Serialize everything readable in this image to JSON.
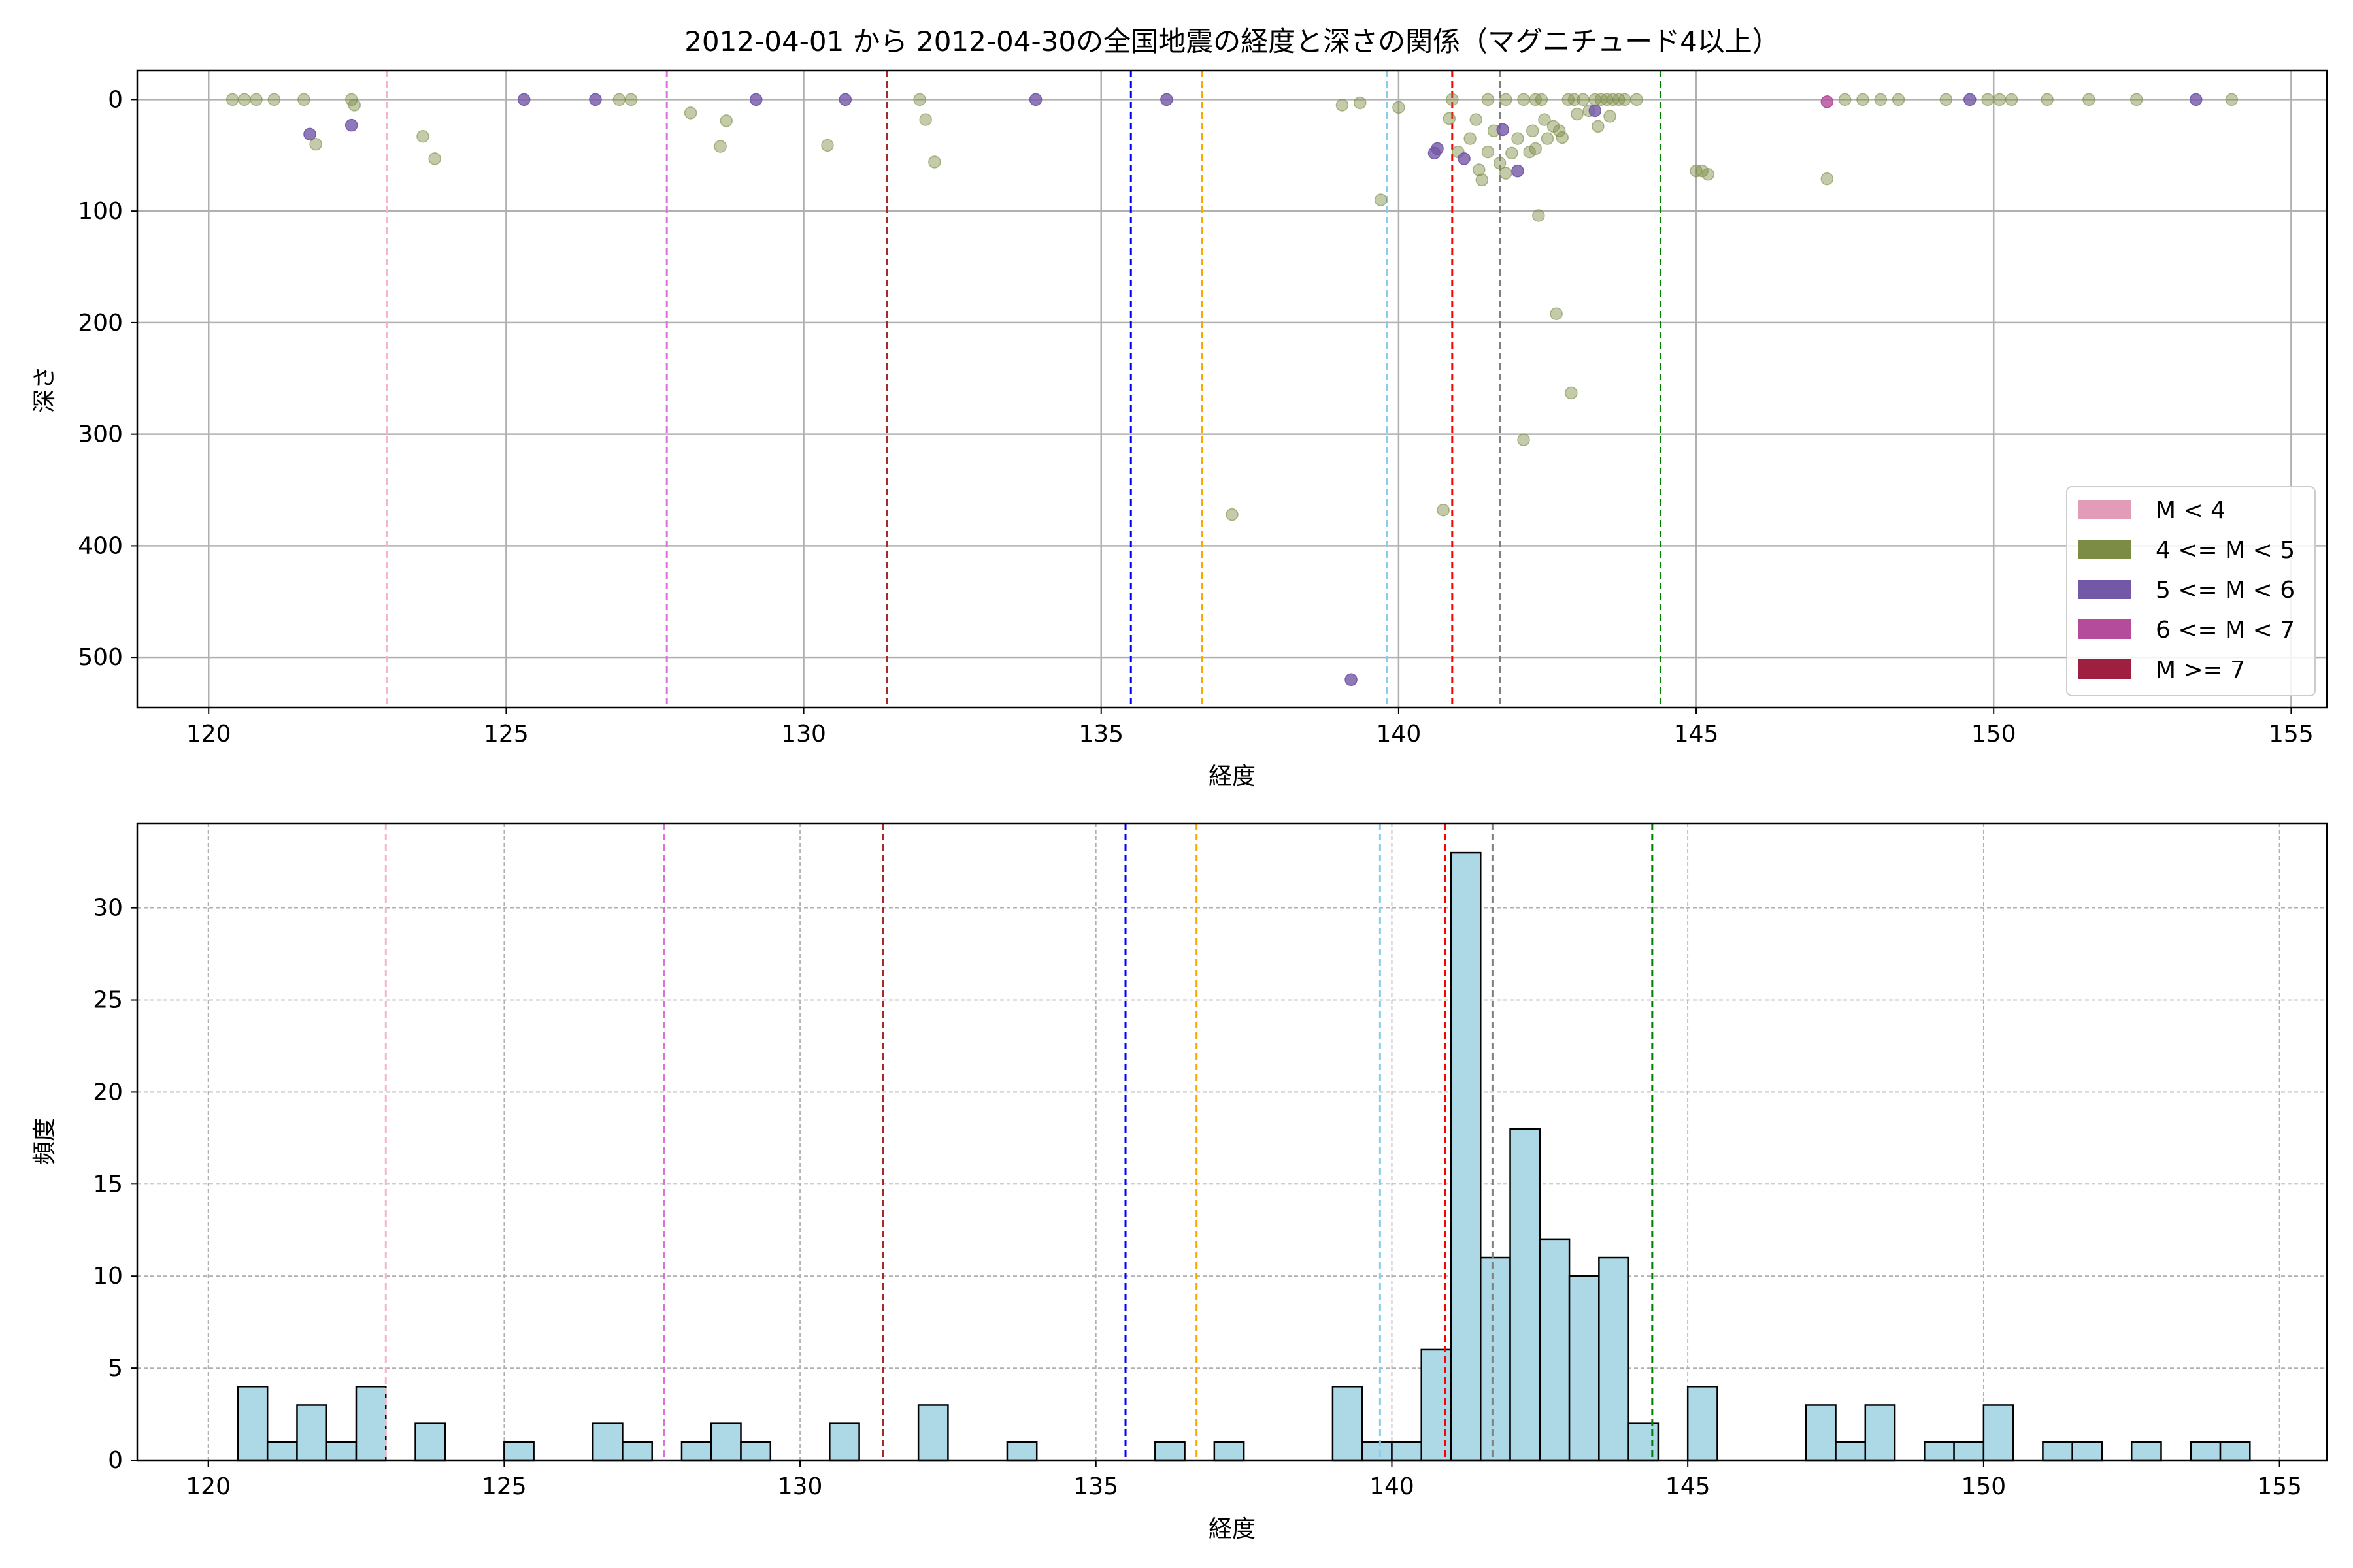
{
  "chart_data": [
    {
      "type": "scatter",
      "title": "2012-04-01 から 2012-04-30の全国地震の経度と深さの関係（マグニチュード4以上）",
      "xlabel": "経度",
      "ylabel": "深さ",
      "xlim": [
        118.8,
        155.6
      ],
      "ylim": [
        545,
        -26
      ],
      "y_inverted": true,
      "xticks": [
        120,
        125,
        130,
        135,
        140,
        145,
        150,
        155
      ],
      "yticks": [
        0,
        100,
        200,
        300,
        400,
        500
      ],
      "grid": true,
      "legend_position": "lower-right",
      "legend": [
        {
          "label": "M < 4",
          "color": "#e39cb8"
        },
        {
          "label": "4 <= M < 5",
          "color": "#7c8c45"
        },
        {
          "label": "5 <= M < 6",
          "color": "#7358a7"
        },
        {
          "label": "6 <= M < 7",
          "color": "#b44b9b"
        },
        {
          "label": "M >= 7",
          "color": "#9e1f3f"
        }
      ],
      "vlines": [
        {
          "x": 123.0,
          "color": "#f4b6c8"
        },
        {
          "x": 127.7,
          "color": "#e06ee0"
        },
        {
          "x": 131.4,
          "color": "#a52a2a"
        },
        {
          "x": 135.5,
          "color": "#0000ff"
        },
        {
          "x": 136.7,
          "color": "#ffa500"
        },
        {
          "x": 139.8,
          "color": "#87ceeb"
        },
        {
          "x": 140.9,
          "color": "#ff0000"
        },
        {
          "x": 141.7,
          "color": "#808080"
        },
        {
          "x": 144.4,
          "color": "#008000"
        }
      ],
      "series": [
        {
          "magnitude_class": "4 <= M < 5",
          "color": "#7c8c45",
          "points": [
            [
              120.4,
              0
            ],
            [
              120.6,
              0
            ],
            [
              120.8,
              0
            ],
            [
              121.1,
              0
            ],
            [
              121.6,
              0
            ],
            [
              121.8,
              40
            ],
            [
              122.4,
              0
            ],
            [
              122.45,
              5
            ],
            [
              123.6,
              33
            ],
            [
              123.8,
              53
            ],
            [
              126.9,
              0
            ],
            [
              127.1,
              0
            ],
            [
              128.1,
              12
            ],
            [
              128.6,
              42
            ],
            [
              128.7,
              19
            ],
            [
              130.4,
              41
            ],
            [
              131.95,
              0
            ],
            [
              132.05,
              18
            ],
            [
              132.2,
              56
            ],
            [
              137.2,
              372
            ],
            [
              139.05,
              5
            ],
            [
              139.35,
              3
            ],
            [
              139.7,
              90
            ],
            [
              140.0,
              7
            ],
            [
              140.75,
              368
            ],
            [
              140.85,
              17
            ],
            [
              140.9,
              0
            ],
            [
              141.0,
              47
            ],
            [
              141.2,
              35
            ],
            [
              141.3,
              18
            ],
            [
              141.35,
              63
            ],
            [
              141.4,
              72
            ],
            [
              141.5,
              0
            ],
            [
              141.5,
              47
            ],
            [
              141.6,
              28
            ],
            [
              141.7,
              57
            ],
            [
              141.8,
              0
            ],
            [
              141.8,
              66
            ],
            [
              141.9,
              48
            ],
            [
              142.0,
              35
            ],
            [
              142.1,
              0
            ],
            [
              142.1,
              305
            ],
            [
              142.2,
              47
            ],
            [
              142.25,
              28
            ],
            [
              142.3,
              0
            ],
            [
              142.3,
              44
            ],
            [
              142.35,
              104
            ],
            [
              142.4,
              0
            ],
            [
              142.45,
              18
            ],
            [
              142.5,
              35
            ],
            [
              142.6,
              24
            ],
            [
              142.65,
              192
            ],
            [
              142.7,
              28
            ],
            [
              142.75,
              34
            ],
            [
              142.85,
              0
            ],
            [
              142.9,
              263
            ],
            [
              142.95,
              0
            ],
            [
              143.0,
              13
            ],
            [
              143.1,
              0
            ],
            [
              143.2,
              10
            ],
            [
              143.3,
              0
            ],
            [
              143.35,
              24
            ],
            [
              143.4,
              0
            ],
            [
              143.5,
              0
            ],
            [
              143.55,
              15
            ],
            [
              143.6,
              0
            ],
            [
              143.7,
              0
            ],
            [
              143.8,
              0
            ],
            [
              144.0,
              0
            ],
            [
              145.0,
              64
            ],
            [
              145.1,
              64
            ],
            [
              145.2,
              67
            ],
            [
              147.2,
              71
            ],
            [
              147.5,
              0
            ],
            [
              147.8,
              0
            ],
            [
              148.1,
              0
            ],
            [
              148.4,
              0
            ],
            [
              149.2,
              0
            ],
            [
              149.9,
              0
            ],
            [
              150.1,
              0
            ],
            [
              150.3,
              0
            ],
            [
              150.9,
              0
            ],
            [
              151.6,
              0
            ],
            [
              152.4,
              0
            ],
            [
              154.0,
              0
            ]
          ]
        },
        {
          "magnitude_class": "5 <= M < 6",
          "color": "#7358a7",
          "points": [
            [
              121.7,
              31
            ],
            [
              122.4,
              23
            ],
            [
              125.3,
              0
            ],
            [
              126.5,
              0
            ],
            [
              129.2,
              0
            ],
            [
              130.7,
              0
            ],
            [
              133.9,
              0
            ],
            [
              136.1,
              0
            ],
            [
              139.2,
              520
            ],
            [
              140.6,
              48
            ],
            [
              140.65,
              44
            ],
            [
              141.1,
              53
            ],
            [
              141.75,
              27
            ],
            [
              142.0,
              64
            ],
            [
              143.3,
              10
            ],
            [
              149.6,
              0
            ],
            [
              153.4,
              0
            ]
          ]
        },
        {
          "magnitude_class": "6 <= M < 7",
          "color": "#b44b9b",
          "points": [
            [
              147.2,
              2
            ]
          ]
        }
      ]
    },
    {
      "type": "bar",
      "title": "",
      "xlabel": "経度",
      "ylabel": "頻度",
      "xlim": [
        118.8,
        155.8
      ],
      "ylim": [
        0,
        34.6
      ],
      "xticks": [
        120,
        125,
        130,
        135,
        140,
        145,
        150,
        155
      ],
      "yticks": [
        0,
        5,
        10,
        15,
        20,
        25,
        30
      ],
      "grid": true,
      "bar_color": "#add8e6",
      "bin_width": 0.5,
      "bins": [
        [
          120.5,
          4
        ],
        [
          121.0,
          1
        ],
        [
          121.5,
          3
        ],
        [
          122.0,
          1
        ],
        [
          122.5,
          4
        ],
        [
          123.5,
          2
        ],
        [
          125.0,
          1
        ],
        [
          126.5,
          2
        ],
        [
          127.0,
          1
        ],
        [
          128.0,
          1
        ],
        [
          128.5,
          2
        ],
        [
          129.0,
          1
        ],
        [
          130.5,
          2
        ],
        [
          132.0,
          3
        ],
        [
          133.5,
          1
        ],
        [
          136.0,
          1
        ],
        [
          137.0,
          1
        ],
        [
          139.0,
          4
        ],
        [
          139.5,
          1
        ],
        [
          140.0,
          1
        ],
        [
          140.5,
          6
        ],
        [
          141.0,
          33
        ],
        [
          141.5,
          11
        ],
        [
          142.0,
          18
        ],
        [
          142.5,
          12
        ],
        [
          143.0,
          10
        ],
        [
          143.5,
          11
        ],
        [
          144.0,
          2
        ],
        [
          145.0,
          4
        ],
        [
          147.0,
          3
        ],
        [
          147.5,
          1
        ],
        [
          148.0,
          3
        ],
        [
          149.0,
          1
        ],
        [
          149.5,
          1
        ],
        [
          150.0,
          3
        ],
        [
          151.0,
          1
        ],
        [
          151.5,
          1
        ],
        [
          152.5,
          1
        ],
        [
          153.5,
          1
        ],
        [
          154.0,
          1
        ]
      ],
      "vlines": [
        {
          "x": 123.0,
          "color": "#f4b6c8"
        },
        {
          "x": 127.7,
          "color": "#e06ee0"
        },
        {
          "x": 131.4,
          "color": "#a52a2a"
        },
        {
          "x": 135.5,
          "color": "#0000ff"
        },
        {
          "x": 136.7,
          "color": "#ffa500"
        },
        {
          "x": 139.8,
          "color": "#87ceeb"
        },
        {
          "x": 140.9,
          "color": "#ff0000"
        },
        {
          "x": 141.7,
          "color": "#808080"
        },
        {
          "x": 144.4,
          "color": "#008000"
        }
      ]
    }
  ]
}
